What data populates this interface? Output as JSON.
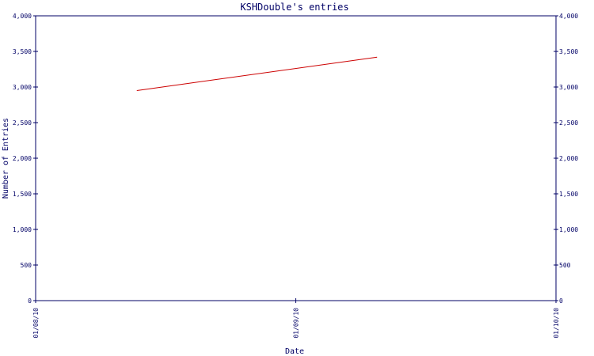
{
  "chart_data": {
    "type": "line",
    "title": "KSHDouble's entries",
    "xlabel": "Date",
    "ylabel": "Number of Entries",
    "x_ticks": [
      "01/08/10",
      "01/09/10",
      "01/10/10"
    ],
    "xlim": [
      "2010-01-08",
      "2010-01-10"
    ],
    "ylim": [
      0,
      4000
    ],
    "y_ticks": [
      {
        "value": 0,
        "label": "0"
      },
      {
        "value": 500,
        "label": "500"
      },
      {
        "value": 1000,
        "label": "1,000"
      },
      {
        "value": 1500,
        "label": "1,500"
      },
      {
        "value": 2000,
        "label": "2,000"
      },
      {
        "value": 2500,
        "label": "2,500"
      },
      {
        "value": 3000,
        "label": "3,000"
      },
      {
        "value": 3500,
        "label": "3,500"
      },
      {
        "value": 4000,
        "label": "4,000"
      }
    ],
    "grid": false,
    "legend": "none",
    "series": [
      {
        "color": "#cc0000",
        "points": [
          {
            "x": "2010-01-08T09:20",
            "y": 2950
          },
          {
            "x": "2010-01-09T07:30",
            "y": 3420
          }
        ]
      }
    ],
    "colors": {
      "axis": "#000066",
      "text": "#000066",
      "background": "#ffffff"
    }
  }
}
